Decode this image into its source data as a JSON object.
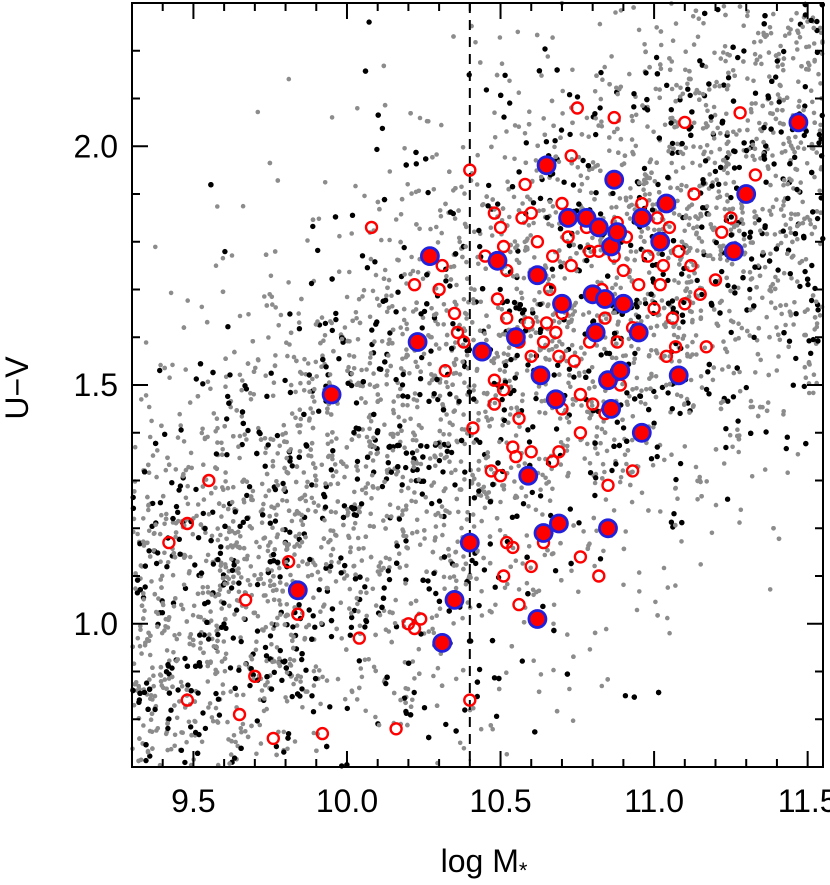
{
  "chart_data": {
    "type": "scatter",
    "title": "",
    "xlabel": "log M",
    "xlabel_subscript": "*",
    "ylabel": "U−V",
    "xlim": [
      9.3,
      11.55
    ],
    "ylim": [
      0.7,
      2.3
    ],
    "xticks": [
      9.5,
      10.0,
      10.5,
      11.0,
      11.5
    ],
    "xtick_labels": [
      "9.5",
      "10.0",
      "10.5",
      "11.0",
      "11.5"
    ],
    "yticks": [
      1.0,
      1.5,
      2.0
    ],
    "ytick_labels": [
      "1.0",
      "1.5",
      "2.0"
    ],
    "reference_line": {
      "x": 10.4,
      "style": "dashed"
    },
    "grid": false,
    "legend": "none",
    "colors": {
      "gray_points": "#8c8c8c",
      "black_points": "#000000",
      "open_circle": "#ff0000",
      "filled_fill": "#ff0000",
      "filled_edge": "#2020dd"
    },
    "series": [
      {
        "marker": "open-red-circle",
        "points": [
          [
            9.42,
            1.17
          ],
          [
            9.48,
            0.84
          ],
          [
            9.48,
            1.21
          ],
          [
            9.55,
            1.3
          ],
          [
            9.65,
            0.81
          ],
          [
            9.67,
            1.05
          ],
          [
            9.7,
            0.89
          ],
          [
            9.76,
            0.76
          ],
          [
            9.81,
            1.13
          ],
          [
            9.84,
            1.02
          ],
          [
            9.92,
            0.77
          ],
          [
            10.04,
            0.97
          ],
          [
            10.08,
            1.83
          ],
          [
            10.16,
            0.78
          ],
          [
            10.2,
            1.0
          ],
          [
            10.24,
            1.01
          ],
          [
            10.22,
            1.71
          ],
          [
            10.3,
            1.7
          ],
          [
            10.31,
            1.75
          ],
          [
            10.32,
            1.53
          ],
          [
            10.35,
            1.65
          ],
          [
            10.36,
            1.61
          ],
          [
            10.38,
            1.59
          ],
          [
            10.4,
            1.95
          ],
          [
            10.41,
            1.41
          ],
          [
            10.4,
            0.84
          ],
          [
            10.45,
            1.77
          ],
          [
            10.48,
            1.86
          ],
          [
            10.49,
            1.68
          ],
          [
            10.48,
            1.51
          ],
          [
            10.48,
            1.46
          ],
          [
            10.5,
            1.83
          ],
          [
            10.51,
            1.79
          ],
          [
            10.52,
            1.74
          ],
          [
            10.52,
            1.64
          ],
          [
            10.51,
            1.49
          ],
          [
            10.5,
            1.31
          ],
          [
            10.51,
            1.1
          ],
          [
            10.52,
            1.17
          ],
          [
            10.54,
            1.16
          ],
          [
            10.54,
            1.37
          ],
          [
            10.55,
            1.35
          ],
          [
            10.56,
            1.43
          ],
          [
            10.56,
            1.59
          ],
          [
            10.57,
            1.85
          ],
          [
            10.58,
            1.92
          ],
          [
            10.59,
            1.63
          ],
          [
            10.6,
            1.56
          ],
          [
            10.6,
            1.36
          ],
          [
            10.6,
            1.12
          ],
          [
            10.6,
            1.86
          ],
          [
            10.62,
            1.8
          ],
          [
            10.63,
            1.73
          ],
          [
            10.63,
            1.52
          ],
          [
            10.64,
            1.59
          ],
          [
            10.65,
            1.63
          ],
          [
            10.66,
            1.7
          ],
          [
            10.67,
            1.77
          ],
          [
            10.68,
            1.61
          ],
          [
            10.69,
            1.56
          ],
          [
            10.69,
            1.36
          ],
          [
            10.7,
            1.88
          ],
          [
            10.7,
            1.65
          ],
          [
            10.7,
            1.45
          ],
          [
            10.72,
            1.81
          ],
          [
            10.73,
            1.98
          ],
          [
            10.73,
            1.75
          ],
          [
            10.74,
            1.55
          ],
          [
            10.76,
            1.48
          ],
          [
            10.76,
            1.4
          ],
          [
            10.78,
            1.83
          ],
          [
            10.79,
            1.78
          ],
          [
            10.79,
            1.59
          ],
          [
            10.8,
            1.46
          ],
          [
            10.82,
            1.1
          ],
          [
            10.82,
            1.78
          ],
          [
            10.83,
            1.7
          ],
          [
            10.84,
            1.64
          ],
          [
            10.84,
            1.44
          ],
          [
            10.85,
            1.29
          ],
          [
            10.87,
            1.77
          ],
          [
            10.88,
            1.84
          ],
          [
            10.88,
            1.59
          ],
          [
            10.89,
            1.5
          ],
          [
            10.9,
            1.74
          ],
          [
            10.91,
            1.81
          ],
          [
            10.93,
            1.62
          ],
          [
            10.93,
            1.32
          ],
          [
            10.95,
            1.71
          ],
          [
            10.96,
            1.88
          ],
          [
            10.98,
            1.77
          ],
          [
            11.0,
            1.66
          ],
          [
            11.01,
            1.85
          ],
          [
            11.02,
            1.71
          ],
          [
            11.03,
            1.75
          ],
          [
            11.04,
            1.56
          ],
          [
            11.05,
            1.83
          ],
          [
            11.06,
            1.64
          ],
          [
            11.07,
            1.58
          ],
          [
            11.08,
            1.78
          ],
          [
            11.1,
            1.67
          ],
          [
            11.1,
            2.05
          ],
          [
            11.12,
            1.75
          ],
          [
            11.13,
            1.9
          ],
          [
            11.15,
            1.69
          ],
          [
            11.17,
            1.58
          ],
          [
            11.2,
            1.72
          ],
          [
            11.22,
            1.82
          ],
          [
            11.25,
            1.85
          ],
          [
            11.28,
            2.07
          ],
          [
            11.3,
            1.9
          ],
          [
            11.33,
            1.94
          ],
          [
            10.75,
            2.08
          ],
          [
            10.87,
            2.06
          ],
          [
            10.67,
            1.34
          ],
          [
            10.56,
            1.04
          ],
          [
            10.64,
            1.17
          ],
          [
            10.76,
            1.14
          ],
          [
            10.47,
            1.32
          ],
          [
            10.22,
            0.99
          ]
        ]
      },
      {
        "marker": "filled-red-blue-edge",
        "points": [
          [
            9.84,
            1.07
          ],
          [
            9.95,
            1.48
          ],
          [
            10.23,
            1.59
          ],
          [
            10.27,
            1.77
          ],
          [
            10.31,
            0.96
          ],
          [
            10.35,
            1.05
          ],
          [
            10.4,
            1.17
          ],
          [
            10.44,
            1.57
          ],
          [
            10.49,
            1.76
          ],
          [
            10.55,
            1.6
          ],
          [
            10.59,
            1.31
          ],
          [
            10.62,
            1.01
          ],
          [
            10.62,
            1.73
          ],
          [
            10.63,
            1.52
          ],
          [
            10.64,
            1.19
          ],
          [
            10.65,
            1.96
          ],
          [
            10.68,
            1.47
          ],
          [
            10.69,
            1.21
          ],
          [
            10.7,
            1.67
          ],
          [
            10.72,
            1.85
          ],
          [
            10.78,
            1.85
          ],
          [
            10.8,
            1.69
          ],
          [
            10.81,
            1.61
          ],
          [
            10.82,
            1.83
          ],
          [
            10.84,
            1.68
          ],
          [
            10.85,
            1.51
          ],
          [
            10.85,
            1.2
          ],
          [
            10.86,
            1.45
          ],
          [
            10.86,
            1.79
          ],
          [
            10.87,
            1.93
          ],
          [
            10.88,
            1.82
          ],
          [
            10.89,
            1.53
          ],
          [
            10.9,
            1.67
          ],
          [
            10.95,
            1.61
          ],
          [
            10.96,
            1.85
          ],
          [
            10.96,
            1.4
          ],
          [
            11.02,
            1.8
          ],
          [
            11.04,
            1.88
          ],
          [
            11.08,
            1.52
          ],
          [
            11.26,
            1.78
          ],
          [
            11.3,
            1.9
          ],
          [
            11.47,
            2.05
          ]
        ]
      }
    ]
  }
}
